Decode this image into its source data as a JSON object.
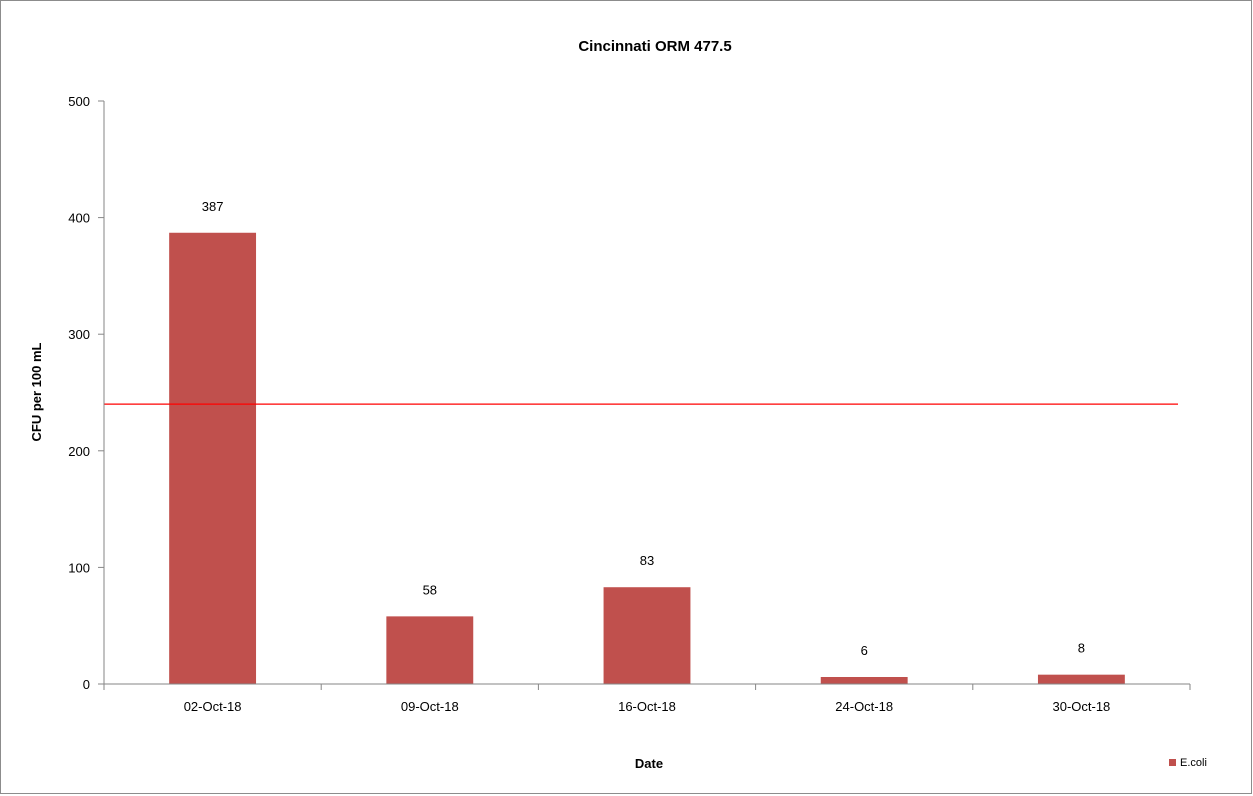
{
  "chart_data": {
    "type": "bar",
    "title": "Cincinnati ORM 477.5",
    "xlabel": "Date",
    "ylabel": "CFU per 100 mL",
    "categories": [
      "02-Oct-18",
      "09-Oct-18",
      "16-Oct-18",
      "24-Oct-18",
      "30-Oct-18"
    ],
    "series": [
      {
        "name": "E.coli",
        "values": [
          387,
          58,
          83,
          6,
          8
        ],
        "color": "#c0504d"
      }
    ],
    "data_labels": [
      "387",
      "58",
      "83",
      "6",
      "8"
    ],
    "ylim": [
      0,
      500
    ],
    "yticks": [
      0,
      100,
      200,
      300,
      400,
      500
    ],
    "ytick_labels": [
      "0",
      "100",
      "200",
      "300",
      "400",
      "500"
    ],
    "reference_line": {
      "value": 240,
      "color": "#ff0000"
    },
    "grid": false,
    "legend_position": "bottom-right"
  }
}
